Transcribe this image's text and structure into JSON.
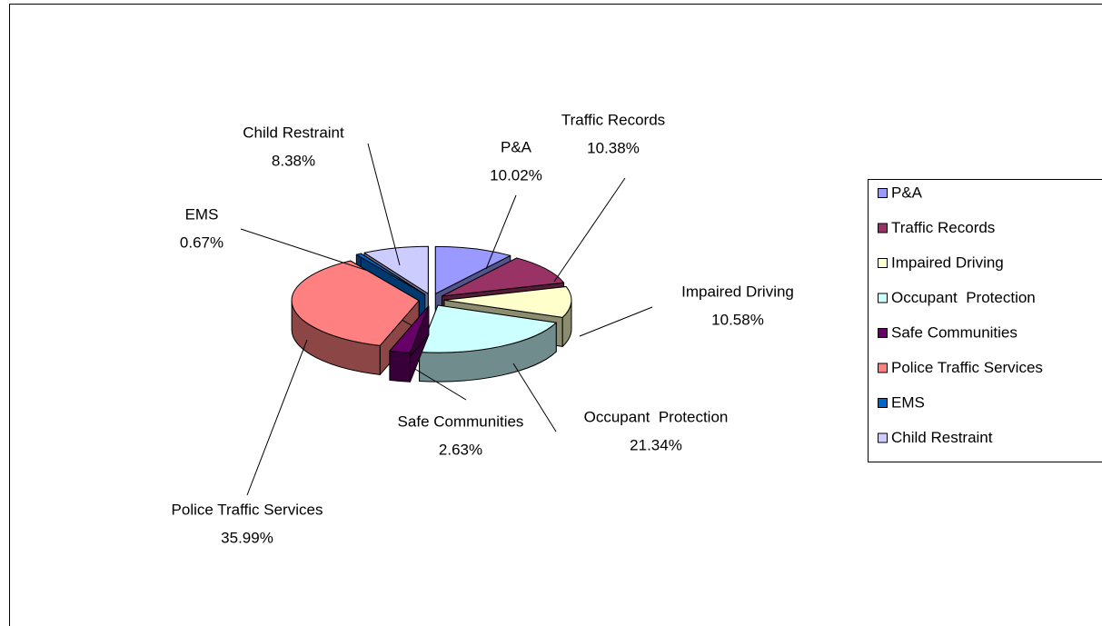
{
  "chart_data": {
    "type": "pie3d",
    "categories": [
      "P&A",
      "Traffic Records",
      "Impaired Driving",
      "Occupant  Protection",
      "Safe Communities",
      "Police Traffic Services",
      "EMS",
      "Child Restraint"
    ],
    "values": [
      10.02,
      10.38,
      10.58,
      21.34,
      2.63,
      35.99,
      0.67,
      8.38
    ],
    "value_labels": [
      "10.02%",
      "10.38%",
      "10.58%",
      "21.34%",
      "2.63%",
      "35.99%",
      "0.67%",
      "8.38%"
    ],
    "colors": [
      "#9999ff",
      "#993366",
      "#ffffcc",
      "#ccffff",
      "#660066",
      "#ff8080",
      "#0066cc",
      "#ccccff"
    ],
    "legend": "right"
  }
}
